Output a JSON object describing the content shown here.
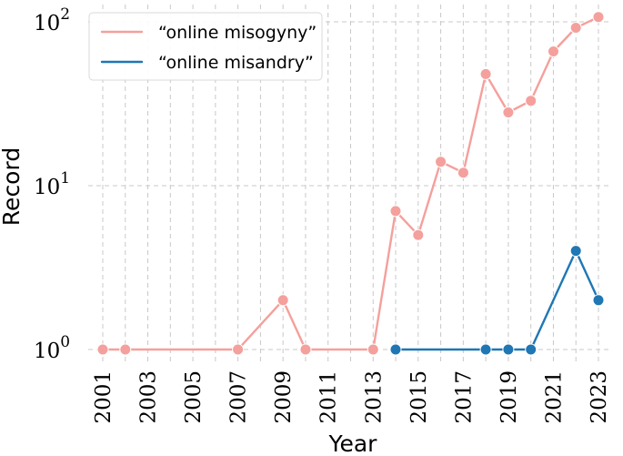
{
  "chart_data": {
    "type": "line",
    "title": "",
    "xlabel": "Year",
    "ylabel": "Record",
    "yscale": "log",
    "xlim": [
      2000.5,
      2023.8
    ],
    "ylim": [
      0.9,
      125
    ],
    "grid": true,
    "legend_position": "top-left",
    "x_ticks": [
      2001,
      2003,
      2005,
      2007,
      2009,
      2011,
      2013,
      2015,
      2017,
      2019,
      2021,
      2023
    ],
    "x_tick_labels": [
      "2001",
      "2003",
      "2005",
      "2007",
      "2009",
      "2011",
      "2013",
      "2015",
      "2017",
      "2019",
      "2021",
      "2023"
    ],
    "x_minor_ticks": [
      2002,
      2004,
      2006,
      2008,
      2010,
      2012,
      2014,
      2016,
      2018,
      2020,
      2022
    ],
    "y_ticks": [
      1,
      10,
      100
    ],
    "y_tick_labels": [
      {
        "base": "10",
        "exp": "0"
      },
      {
        "base": "10",
        "exp": "1"
      },
      {
        "base": "10",
        "exp": "2"
      }
    ],
    "series": [
      {
        "name": "“online misogyny”",
        "color": "#f4a09c",
        "x": [
          2001,
          2002,
          2007,
          2009,
          2010,
          2013,
          2014,
          2015,
          2016,
          2017,
          2018,
          2019,
          2020,
          2021,
          2022,
          2023
        ],
        "y": [
          1,
          1,
          1,
          2,
          1,
          1,
          7,
          5,
          14,
          12,
          48,
          28,
          33,
          66,
          92,
          107
        ]
      },
      {
        "name": "“online misandry”",
        "color": "#1f77b4",
        "x": [
          2014,
          2018,
          2019,
          2020,
          2022,
          2023
        ],
        "y": [
          1,
          1,
          1,
          1,
          4,
          2
        ]
      }
    ]
  }
}
